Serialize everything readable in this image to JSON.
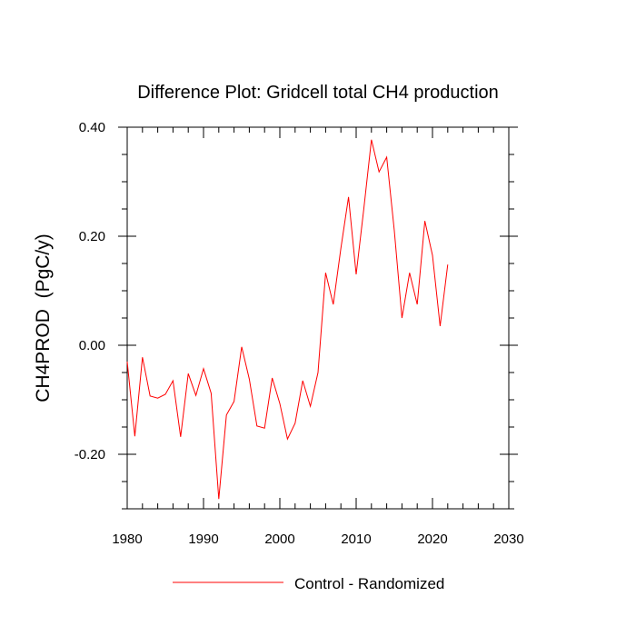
{
  "chart_data": {
    "type": "line",
    "title": "Difference Plot: Gridcell total CH4 production",
    "xlabel": "",
    "ylabel": "CH4PROD  (PgC/y)",
    "xlim": [
      1980,
      2030
    ],
    "ylim": [
      -0.3,
      0.4
    ],
    "xticks": [
      1980,
      1990,
      2000,
      2010,
      2020,
      2030
    ],
    "xtick_labels": [
      "1980",
      "1990",
      "2000",
      "2010",
      "2020",
      "2030"
    ],
    "yticks": [
      -0.2,
      0.0,
      0.2,
      0.4
    ],
    "ytick_labels": [
      "-0.20",
      "0.00",
      "0.20",
      "0.40"
    ],
    "grid": false,
    "legend_position": "bottom-center",
    "series": [
      {
        "name": "Control - Randomized",
        "color": "#ff0000",
        "x": [
          1980,
          1981,
          1982,
          1983,
          1984,
          1985,
          1986,
          1987,
          1988,
          1989,
          1990,
          1991,
          1992,
          1993,
          1994,
          1995,
          1996,
          1997,
          1998,
          1999,
          2000,
          2001,
          2002,
          2003,
          2004,
          2005,
          2006,
          2007,
          2008,
          2009,
          2010,
          2011,
          2012,
          2013,
          2014,
          2015,
          2016,
          2017,
          2018,
          2019,
          2020,
          2021,
          2022
        ],
        "y": [
          -0.03,
          -0.167,
          -0.022,
          -0.093,
          -0.097,
          -0.09,
          -0.065,
          -0.168,
          -0.052,
          -0.092,
          -0.043,
          -0.088,
          -0.282,
          -0.128,
          -0.103,
          -0.003,
          -0.062,
          -0.148,
          -0.152,
          -0.06,
          -0.107,
          -0.172,
          -0.143,
          -0.065,
          -0.112,
          -0.05,
          0.133,
          0.075,
          0.178,
          0.272,
          0.13,
          0.25,
          0.377,
          0.318,
          0.345,
          0.21,
          0.05,
          0.133,
          0.075,
          0.228,
          0.165,
          0.035,
          0.148
        ]
      }
    ]
  }
}
